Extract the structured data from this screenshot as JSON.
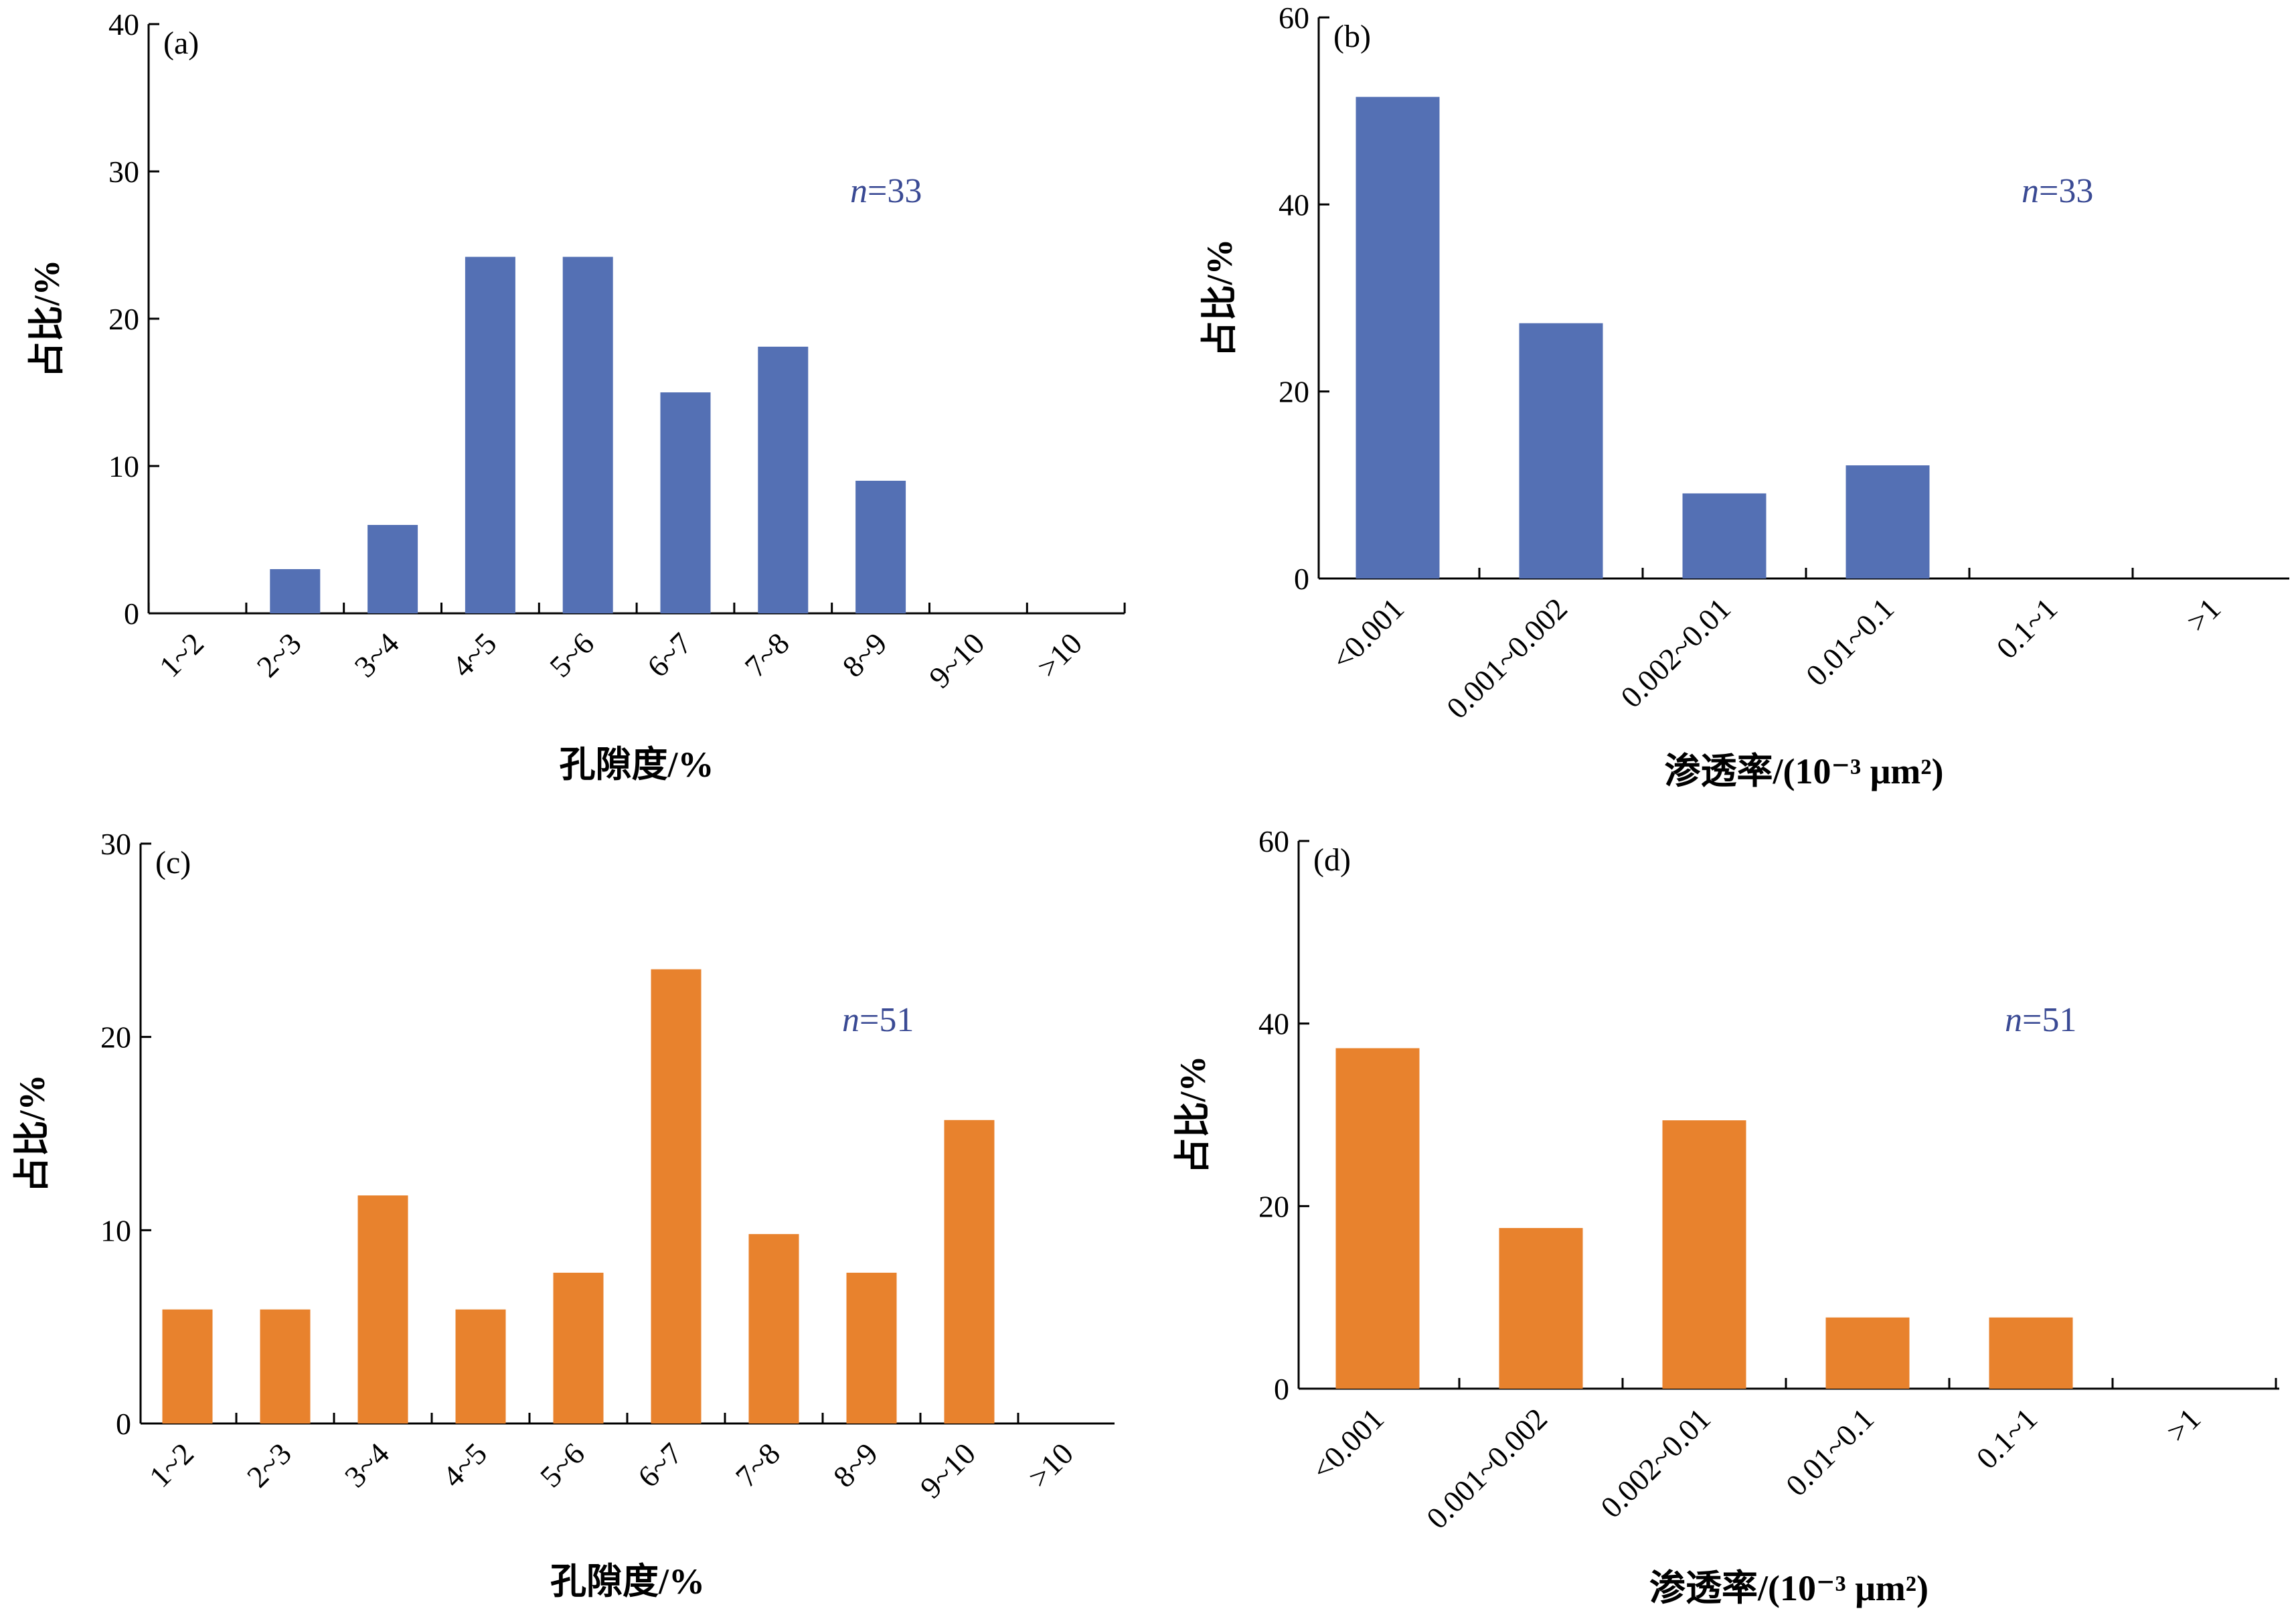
{
  "colors": {
    "blue": "#5470b4",
    "orange": "#e8822d",
    "n_text": "#3a4a94"
  },
  "chart_data": [
    {
      "type": "bar",
      "panel": "(a)",
      "n_prefix": "n",
      "n_value": "=33",
      "categories": [
        "1~2",
        "2~3",
        "3~4",
        "4~5",
        "5~6",
        "6~7",
        "7~8",
        "8~9",
        "9~10",
        ">10"
      ],
      "values": [
        0,
        3,
        6,
        24.2,
        24.2,
        15,
        18.1,
        9,
        0,
        0
      ],
      "ylim": [
        0,
        40
      ],
      "yticks": [
        0,
        10,
        20,
        30,
        40
      ],
      "xlabel": "孔隙度/%",
      "ylabel": "占比/%",
      "color": "blue",
      "grid": false
    },
    {
      "type": "bar",
      "panel": "(b)",
      "n_prefix": "n",
      "n_value": "=33",
      "categories": [
        "<0.001",
        "0.001~0.002",
        "0.002~0.01",
        "0.01~0.1",
        "0.1~1",
        ">1"
      ],
      "values": [
        51.5,
        27.3,
        9.1,
        12.1,
        0,
        0
      ],
      "ylim": [
        0,
        60
      ],
      "yticks": [
        0,
        20,
        40,
        60
      ],
      "xlabel": "渗透率/(10⁻³ μm²)",
      "ylabel": "占比/%",
      "color": "blue",
      "grid": false
    },
    {
      "type": "bar",
      "panel": "(c)",
      "n_prefix": "n",
      "n_value": "=51",
      "categories": [
        "1~2",
        "2~3",
        "3~4",
        "4~5",
        "5~6",
        "6~7",
        "7~8",
        "8~9",
        "9~10",
        ">10"
      ],
      "values": [
        5.9,
        5.9,
        11.8,
        5.9,
        7.8,
        23.5,
        9.8,
        7.8,
        15.7,
        0
      ],
      "ylim": [
        0,
        30
      ],
      "yticks": [
        0,
        10,
        20,
        30
      ],
      "xlabel": "孔隙度/%",
      "ylabel": "占比/%",
      "color": "orange",
      "grid": false
    },
    {
      "type": "bar",
      "panel": "(d)",
      "n_prefix": "n",
      "n_value": "=51",
      "categories": [
        "<0.001",
        "0.001~0.002",
        "0.002~0.01",
        "0.01~0.1",
        "0.1~1",
        ">1"
      ],
      "values": [
        37.3,
        17.6,
        29.4,
        7.8,
        7.8,
        0
      ],
      "ylim": [
        0,
        60
      ],
      "yticks": [
        0,
        20,
        40,
        60
      ],
      "xlabel": "渗透率/(10⁻³ μm²)",
      "ylabel": "占比/%",
      "color": "orange",
      "grid": false
    }
  ]
}
